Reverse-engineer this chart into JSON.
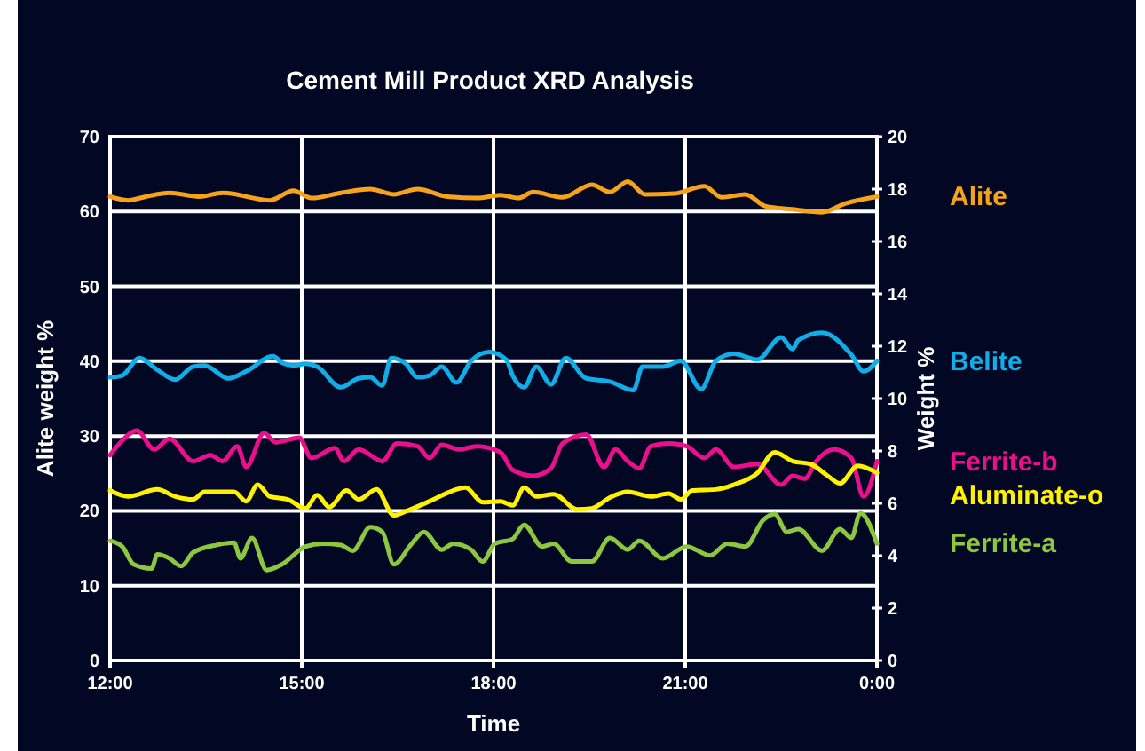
{
  "chart_data": {
    "type": "line",
    "title": "Cement Mill Product XRD Analysis",
    "xlabel": "Time",
    "ylabel": "Alite weight %",
    "y2label": "Weight %",
    "xlim": [
      12,
      24
    ],
    "xticks": [
      {
        "value": 12,
        "label": "12:00"
      },
      {
        "value": 15,
        "label": "15:00"
      },
      {
        "value": 18,
        "label": "18:00"
      },
      {
        "value": 21,
        "label": "21:00"
      },
      {
        "value": 24,
        "label": "0:00"
      }
    ],
    "ylim": [
      0,
      70
    ],
    "yticks": [
      0,
      10,
      20,
      30,
      40,
      50,
      60,
      70
    ],
    "y2lim": [
      0,
      20
    ],
    "y2ticks": [
      0,
      2,
      4,
      6,
      8,
      10,
      12,
      14,
      16,
      18,
      20
    ],
    "grid": true,
    "series": [
      {
        "name": "Alite",
        "color": "#f7a21b",
        "x": [
          12,
          12.28,
          12.56,
          12.93,
          13.39,
          13.76,
          14.5,
          14.87,
          15.15,
          15.61,
          16.07,
          16.44,
          16.81,
          17.28,
          17.74,
          18.11,
          18.39,
          18.62,
          19.08,
          19.54,
          19.82,
          20.1,
          20.37,
          20.83,
          21.3,
          21.57,
          21.94,
          22.26,
          22.68,
          23.14,
          23.51,
          24
        ],
        "values": [
          62,
          61.5,
          62,
          62.5,
          62,
          62.5,
          61.5,
          62.8,
          61.8,
          62.5,
          63,
          62.3,
          63,
          62,
          61.8,
          62.2,
          61.8,
          62.6,
          61.9,
          63.6,
          62.6,
          64,
          62.3,
          62.4,
          63.4,
          61.9,
          62.3,
          60.7,
          60.3,
          59.9,
          61.1,
          62
        ]
      },
      {
        "name": "Belite",
        "color": "#10aee8",
        "axis": "y2",
        "x": [
          12,
          12.19,
          12.46,
          12.74,
          13.02,
          13.3,
          13.48,
          13.85,
          14.13,
          14.55,
          14.69,
          14.87,
          15.06,
          15.24,
          15.61,
          15.89,
          16.07,
          16.26,
          16.4,
          16.63,
          16.81,
          17,
          17.19,
          17.42,
          17.65,
          17.93,
          18.2,
          18.3,
          18.48,
          18.67,
          18.9,
          19.13,
          19.45,
          19.82,
          20.19,
          20.33,
          20.65,
          20.93,
          21.25,
          21.48,
          21.76,
          22.13,
          22.5,
          22.68,
          22.77,
          23.14,
          23.6,
          23.79,
          24
        ],
        "values": [
          10.81,
          10.88,
          11.55,
          11.1,
          10.72,
          11.22,
          11.26,
          10.77,
          11.04,
          11.62,
          11.37,
          11.26,
          11.33,
          11.22,
          10.43,
          10.77,
          10.81,
          10.5,
          11.55,
          11.33,
          10.81,
          10.88,
          11.22,
          10.61,
          11.44,
          11.78,
          11.49,
          10.88,
          10.43,
          11.22,
          10.54,
          11.55,
          10.77,
          10.65,
          10.32,
          11.22,
          11.22,
          11.44,
          10.36,
          11.44,
          11.71,
          11.49,
          12.34,
          11.89,
          12.23,
          12.52,
          11.67,
          11.04,
          11.44
        ]
      },
      {
        "name": "Ferrite-b",
        "color": "#ec0f8c",
        "axis": "y2",
        "x": [
          12,
          12.19,
          12.42,
          12.69,
          12.93,
          13.3,
          13.57,
          13.76,
          13.99,
          14.13,
          14.41,
          14.59,
          14.96,
          15.15,
          15.52,
          15.66,
          15.89,
          16.26,
          16.49,
          16.81,
          17,
          17.19,
          17.46,
          17.74,
          18.11,
          18.3,
          18.62,
          18.9,
          19.08,
          19.45,
          19.73,
          19.91,
          20.1,
          20.28,
          20.46,
          20.74,
          21.02,
          21.3,
          21.48,
          21.76,
          22.13,
          22.5,
          22.68,
          22.87,
          23.05,
          23.33,
          23.6,
          23.79,
          24
        ],
        "values": [
          7.84,
          8.4,
          8.78,
          8.06,
          8.47,
          7.61,
          7.84,
          7.61,
          8.18,
          7.39,
          8.69,
          8.33,
          8.51,
          7.73,
          8.11,
          7.61,
          8.06,
          7.61,
          8.29,
          8.18,
          7.73,
          8.24,
          8.06,
          8.18,
          7.95,
          7.27,
          7.05,
          7.34,
          8.29,
          8.63,
          7.39,
          8.06,
          7.61,
          7.34,
          8.18,
          8.29,
          8.18,
          7.73,
          8.06,
          7.39,
          7.5,
          6.71,
          7.05,
          6.94,
          7.61,
          8.06,
          7.73,
          6.26,
          7.61
        ]
      },
      {
        "name": "Aluminate-o",
        "color": "#fff200",
        "axis": "y2",
        "x": [
          12,
          12.28,
          12.74,
          13.02,
          13.3,
          13.48,
          13.94,
          14.13,
          14.31,
          14.5,
          14.78,
          15.06,
          15.24,
          15.43,
          15.7,
          15.89,
          16.17,
          16.44,
          16.63,
          17,
          17.37,
          17.56,
          17.83,
          18.11,
          18.3,
          18.48,
          18.67,
          18.94,
          19.31,
          19.54,
          19.82,
          20.1,
          20.46,
          20.74,
          20.93,
          21.11,
          21.48,
          21.76,
          22.13,
          22.4,
          22.68,
          22.96,
          23.23,
          23.42,
          23.7,
          24
        ],
        "values": [
          6.49,
          6.26,
          6.53,
          6.26,
          6.15,
          6.44,
          6.44,
          6.08,
          6.71,
          6.26,
          6.15,
          5.81,
          6.31,
          5.86,
          6.49,
          6.15,
          6.53,
          5.54,
          5.7,
          6.08,
          6.49,
          6.6,
          6.04,
          6.08,
          5.92,
          6.6,
          6.26,
          6.35,
          5.77,
          5.81,
          6.22,
          6.44,
          6.26,
          6.37,
          6.15,
          6.49,
          6.53,
          6.71,
          7.16,
          7.95,
          7.61,
          7.5,
          7.05,
          6.76,
          7.43,
          7.16
        ]
      },
      {
        "name": "Ferrite-a",
        "color": "#8dc63f",
        "axis": "y2",
        "x": [
          12,
          12.19,
          12.37,
          12.65,
          12.74,
          12.93,
          13.11,
          13.3,
          13.67,
          13.94,
          14.04,
          14.22,
          14.45,
          14.69,
          15.06,
          15.33,
          15.61,
          15.8,
          16.07,
          16.26,
          16.44,
          16.72,
          16.91,
          17.19,
          17.37,
          17.65,
          17.83,
          18.02,
          18.3,
          18.48,
          18.76,
          18.94,
          19.22,
          19.54,
          19.82,
          20.1,
          20.28,
          20.65,
          21.02,
          21.39,
          21.66,
          21.94,
          22.22,
          22.4,
          22.59,
          22.77,
          23.14,
          23.42,
          23.6,
          23.74,
          24
        ],
        "values": [
          4.57,
          4.35,
          3.67,
          3.51,
          4.05,
          3.9,
          3.6,
          4.12,
          4.41,
          4.5,
          3.9,
          4.68,
          3.45,
          3.67,
          4.35,
          4.46,
          4.41,
          4.19,
          5.09,
          4.91,
          3.67,
          4.46,
          4.91,
          4.23,
          4.46,
          4.23,
          3.78,
          4.46,
          4.64,
          5.18,
          4.35,
          4.46,
          3.78,
          3.78,
          4.68,
          4.23,
          4.57,
          3.9,
          4.35,
          4.01,
          4.46,
          4.35,
          5.36,
          5.59,
          4.91,
          5.02,
          4.19,
          5.02,
          4.68,
          5.63,
          4.46
        ]
      }
    ]
  }
}
